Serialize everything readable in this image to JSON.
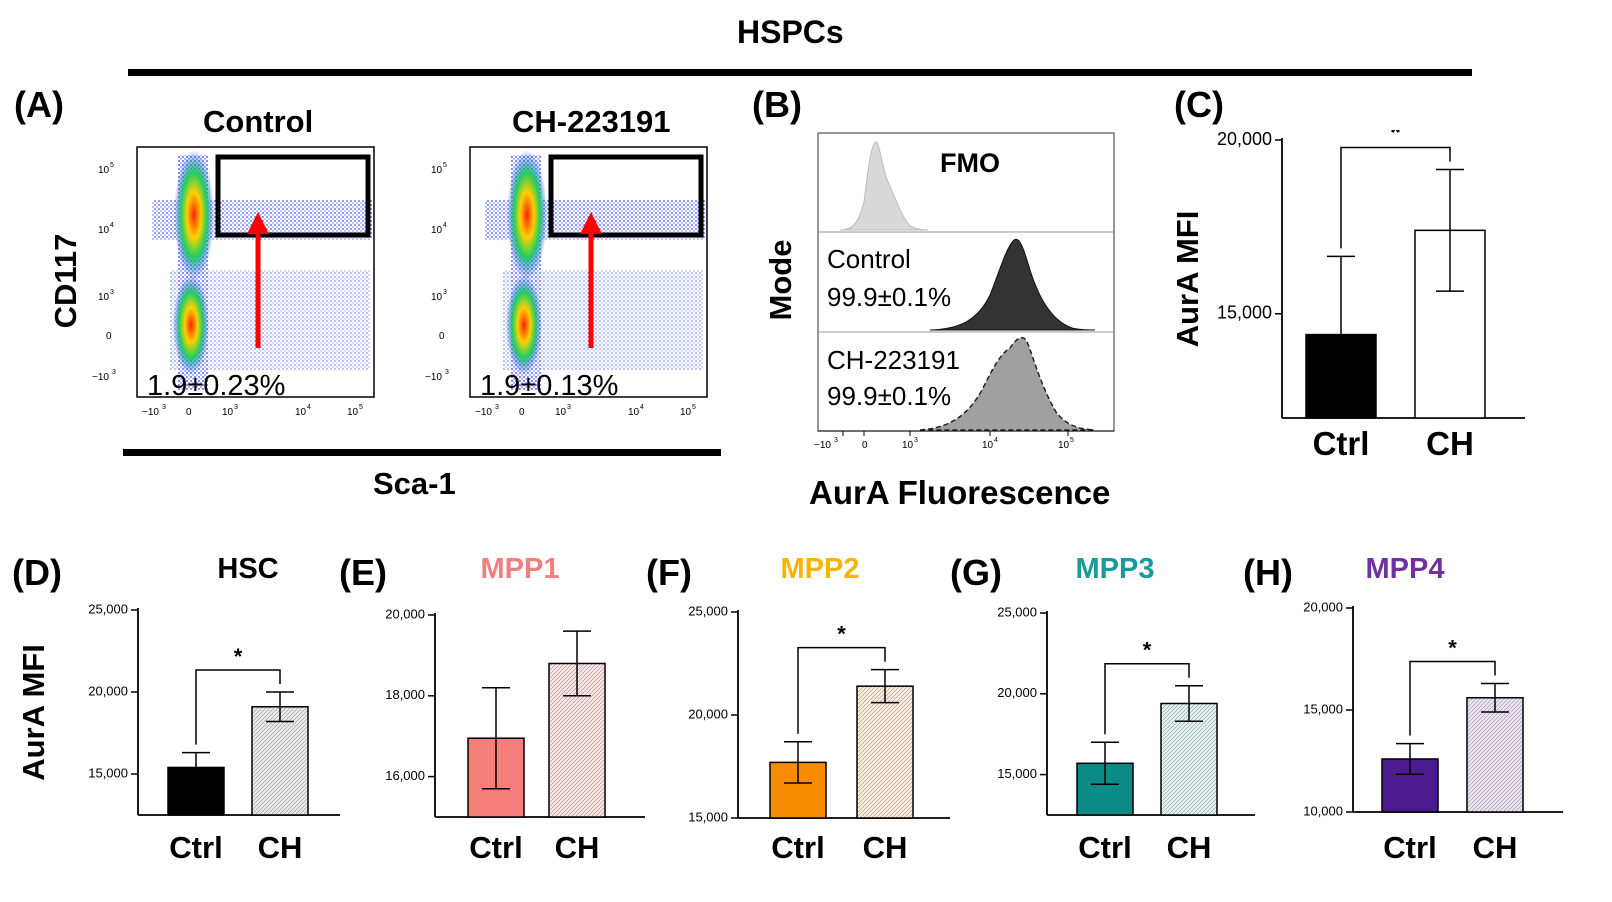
{
  "header": {
    "title": "HSPCs"
  },
  "panels": {
    "A": {
      "letter": "(A)",
      "left_title": "Control",
      "right_title": "CH-223191",
      "ylabel": "CD117",
      "xlabel": "Sca-1",
      "left_pct": "1.9±0.23%",
      "right_pct": "1.9±0.13%",
      "y_ticks": [
        "10^5",
        "10^4",
        "10^3",
        "0",
        "-10^3"
      ],
      "x_ticks": [
        "-10^3",
        "0",
        "10^3",
        "10^4",
        "10^5"
      ]
    },
    "B": {
      "letter": "(B)",
      "ylabel": "Mode",
      "xlabel": "AurA Fluorescence",
      "fmo_label": "FMO",
      "control_label": "Control",
      "control_pct": "99.9±0.1%",
      "ch_label": "CH-223191",
      "ch_pct": "99.9±0.1%",
      "x_ticks": [
        "-10^3",
        "0",
        "10^3",
        "10^4",
        "10^5"
      ]
    },
    "C": {
      "letter": "(C)"
    },
    "D": {
      "letter": "(D)"
    },
    "E": {
      "letter": "(E)"
    },
    "F": {
      "letter": "(F)"
    },
    "G": {
      "letter": "(G)"
    },
    "H": {
      "letter": "(H)"
    }
  },
  "colors": {
    "hsc_ctrl": "#000000",
    "hsc_ch": "#e8e8e8",
    "mpp1_title": "#f08080",
    "mpp1_ctrl": "#f47e7a",
    "mpp1_ch": "#fbe3e3",
    "mpp2_title": "#f8b400",
    "mpp2_ctrl": "#f88c00",
    "mpp2_ch": "#fcebdc",
    "mpp3_title": "#1a9a9a",
    "mpp3_ctrl": "#0b8a86",
    "mpp3_ch": "#e0f2f2",
    "mpp4_title": "#7030a0",
    "mpp4_ctrl": "#4b1b8f",
    "mpp4_ch": "#ece2f4",
    "red_arrow": "#ff0000"
  },
  "chart_data": [
    {
      "id": "C",
      "type": "bar",
      "title": "",
      "ylabel": "AurA MFI",
      "categories": [
        "Ctrl",
        "CH"
      ],
      "values": [
        14400,
        17400
      ],
      "errors": [
        2250,
        1750
      ],
      "ylim": [
        12000,
        20000
      ],
      "ytick_values": [
        15000,
        20000
      ],
      "ytick_labels": [
        "15,000",
        "20,000"
      ],
      "significance": "*"
    },
    {
      "id": "D",
      "type": "bar",
      "title": "HSC",
      "ylabel": "AurA MFI",
      "categories": [
        "Ctrl",
        "CH"
      ],
      "values": [
        15400,
        19100
      ],
      "errors": [
        900,
        900
      ],
      "ylim": [
        12500,
        25000
      ],
      "ytick_values": [
        15000,
        20000,
        25000
      ],
      "ytick_labels": [
        "15,000",
        "20,000",
        "25,000"
      ],
      "significance": "*"
    },
    {
      "id": "E",
      "type": "bar",
      "title": "MPP1",
      "ylabel": "",
      "categories": [
        "Ctrl",
        "CH"
      ],
      "values": [
        16950,
        18800
      ],
      "errors": [
        1250,
        800
      ],
      "ylim": [
        15000,
        20000
      ],
      "ytick_values": [
        16000,
        18000,
        20000
      ],
      "ytick_labels": [
        "16,000",
        "18,000",
        "20,000"
      ],
      "significance": ""
    },
    {
      "id": "F",
      "type": "bar",
      "title": "MPP2",
      "ylabel": "",
      "categories": [
        "Ctrl",
        "CH"
      ],
      "values": [
        17700,
        21400
      ],
      "errors": [
        1000,
        800
      ],
      "ylim": [
        15000,
        25000
      ],
      "ytick_values": [
        15000,
        20000,
        25000
      ],
      "ytick_labels": [
        "15,000",
        "20,000",
        "25,000"
      ],
      "significance": "*"
    },
    {
      "id": "G",
      "type": "bar",
      "title": "MPP3",
      "ylabel": "",
      "categories": [
        "Ctrl",
        "CH"
      ],
      "values": [
        15700,
        19400
      ],
      "errors": [
        1300,
        1100
      ],
      "ylim": [
        12500,
        25000
      ],
      "ytick_values": [
        15000,
        20000,
        25000
      ],
      "ytick_labels": [
        "15,000",
        "20,000",
        "25,000"
      ],
      "significance": "*"
    },
    {
      "id": "H",
      "type": "bar",
      "title": "MPP4",
      "ylabel": "",
      "categories": [
        "Ctrl",
        "CH"
      ],
      "values": [
        12600,
        15600
      ],
      "errors": [
        750,
        700
      ],
      "ylim": [
        10000,
        20000
      ],
      "ytick_values": [
        10000,
        15000,
        20000
      ],
      "ytick_labels": [
        "10,000",
        "15,000",
        "20,000"
      ],
      "significance": "*"
    }
  ]
}
